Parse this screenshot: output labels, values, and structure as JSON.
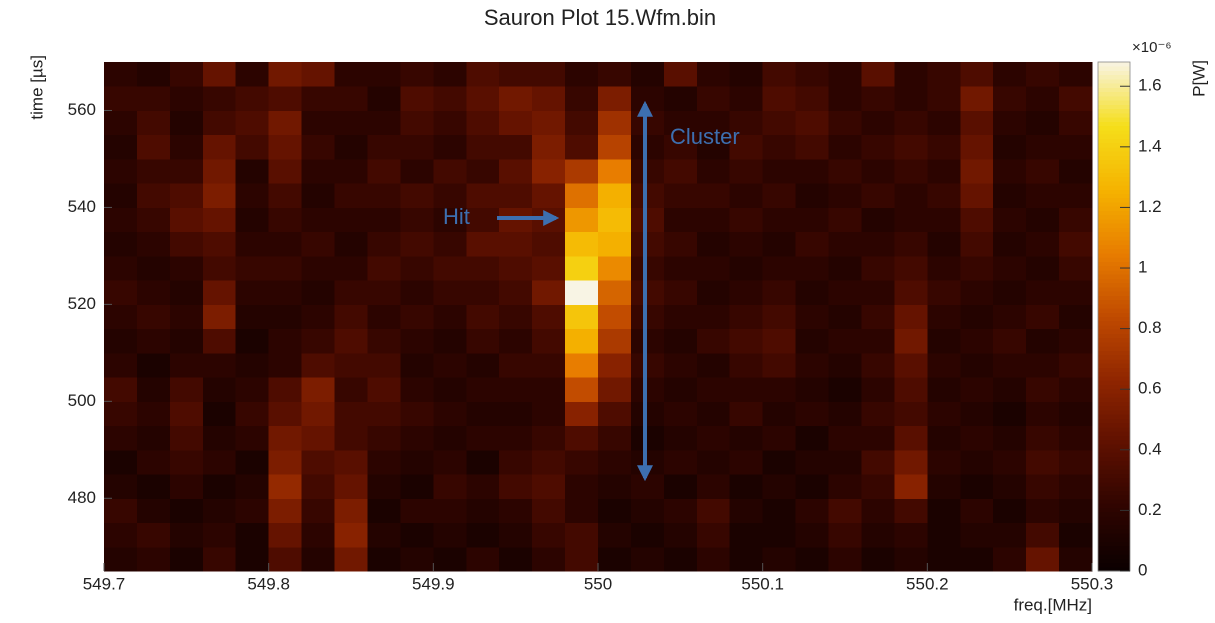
{
  "chart_data": {
    "type": "heatmap",
    "title": "Sauron Plot 15.Wfm.bin",
    "xlabel": "freq.[MHz]",
    "ylabel": "time [µs]",
    "colorbar_label": "P[W]",
    "colorbar_exponent": "×10⁻⁶",
    "x": [
      549.7,
      549.72,
      549.74,
      549.76,
      549.78,
      549.8,
      549.82,
      549.84,
      549.86,
      549.88,
      549.9,
      549.92,
      549.94,
      549.96,
      549.98,
      550,
      550.02,
      550.04,
      550.06,
      550.08,
      550.1,
      550.12,
      550.14,
      550.16,
      550.18,
      550.2,
      550.22,
      550.24,
      550.26,
      550.28,
      550.3
    ],
    "y": [
      465,
      470,
      475,
      480,
      485,
      490,
      495,
      500,
      505,
      510,
      515,
      520,
      525,
      530,
      535,
      540,
      545,
      550,
      555,
      560,
      565,
      570
    ],
    "z": [
      [
        0.15,
        0.2,
        0.1,
        0.25,
        0.1,
        0.35,
        0.15,
        0.5,
        0.1,
        0.15,
        0.1,
        0.2,
        0.1,
        0.2,
        0.3,
        0.1,
        0.15,
        0.1,
        0.2,
        0.1,
        0.15,
        0.1,
        0.2,
        0.1,
        0.15,
        0.1,
        0.1,
        0.2,
        0.45,
        0.15
      ],
      [
        0.2,
        0.25,
        0.15,
        0.2,
        0.1,
        0.45,
        0.2,
        0.6,
        0.15,
        0.1,
        0.15,
        0.1,
        0.15,
        0.25,
        0.3,
        0.15,
        0.1,
        0.15,
        0.25,
        0.1,
        0.1,
        0.15,
        0.25,
        0.15,
        0.2,
        0.1,
        0.15,
        0.15,
        0.3,
        0.1
      ],
      [
        0.25,
        0.15,
        0.1,
        0.15,
        0.2,
        0.55,
        0.25,
        0.55,
        0.1,
        0.2,
        0.2,
        0.15,
        0.2,
        0.3,
        0.2,
        0.1,
        0.15,
        0.2,
        0.3,
        0.15,
        0.1,
        0.2,
        0.3,
        0.2,
        0.3,
        0.1,
        0.2,
        0.1,
        0.2,
        0.15
      ],
      [
        0.15,
        0.1,
        0.2,
        0.1,
        0.15,
        0.65,
        0.3,
        0.45,
        0.15,
        0.1,
        0.25,
        0.2,
        0.3,
        0.35,
        0.2,
        0.15,
        0.2,
        0.1,
        0.2,
        0.1,
        0.15,
        0.1,
        0.2,
        0.25,
        0.6,
        0.15,
        0.1,
        0.15,
        0.25,
        0.2
      ],
      [
        0.1,
        0.2,
        0.25,
        0.2,
        0.1,
        0.55,
        0.35,
        0.4,
        0.2,
        0.15,
        0.2,
        0.1,
        0.25,
        0.3,
        0.25,
        0.2,
        0.15,
        0.2,
        0.15,
        0.2,
        0.1,
        0.15,
        0.15,
        0.3,
        0.5,
        0.2,
        0.15,
        0.2,
        0.3,
        0.25
      ],
      [
        0.2,
        0.15,
        0.3,
        0.15,
        0.2,
        0.5,
        0.45,
        0.3,
        0.25,
        0.2,
        0.15,
        0.2,
        0.2,
        0.25,
        0.35,
        0.25,
        0.1,
        0.15,
        0.2,
        0.15,
        0.2,
        0.1,
        0.2,
        0.2,
        0.4,
        0.15,
        0.2,
        0.15,
        0.25,
        0.2
      ],
      [
        0.25,
        0.2,
        0.35,
        0.1,
        0.25,
        0.4,
        0.5,
        0.3,
        0.3,
        0.25,
        0.2,
        0.15,
        0.15,
        0.2,
        0.6,
        0.35,
        0.15,
        0.2,
        0.15,
        0.25,
        0.15,
        0.2,
        0.15,
        0.25,
        0.3,
        0.2,
        0.15,
        0.1,
        0.2,
        0.15
      ],
      [
        0.3,
        0.15,
        0.3,
        0.15,
        0.2,
        0.35,
        0.55,
        0.25,
        0.35,
        0.2,
        0.15,
        0.2,
        0.2,
        0.2,
        0.85,
        0.5,
        0.2,
        0.15,
        0.2,
        0.2,
        0.2,
        0.15,
        0.1,
        0.2,
        0.35,
        0.15,
        0.2,
        0.15,
        0.25,
        0.2
      ],
      [
        0.2,
        0.1,
        0.2,
        0.2,
        0.15,
        0.2,
        0.35,
        0.3,
        0.3,
        0.15,
        0.2,
        0.15,
        0.25,
        0.25,
        1.05,
        0.6,
        0.25,
        0.2,
        0.15,
        0.25,
        0.3,
        0.2,
        0.15,
        0.25,
        0.4,
        0.2,
        0.15,
        0.2,
        0.2,
        0.25
      ],
      [
        0.15,
        0.2,
        0.15,
        0.35,
        0.1,
        0.2,
        0.25,
        0.35,
        0.25,
        0.2,
        0.15,
        0.25,
        0.2,
        0.3,
        1.25,
        0.75,
        0.2,
        0.15,
        0.25,
        0.3,
        0.35,
        0.15,
        0.2,
        0.2,
        0.5,
        0.15,
        0.2,
        0.25,
        0.15,
        0.2
      ],
      [
        0.2,
        0.25,
        0.2,
        0.55,
        0.15,
        0.15,
        0.2,
        0.3,
        0.2,
        0.25,
        0.2,
        0.3,
        0.25,
        0.35,
        1.35,
        0.85,
        0.25,
        0.2,
        0.2,
        0.25,
        0.3,
        0.2,
        0.15,
        0.25,
        0.45,
        0.2,
        0.15,
        0.2,
        0.25,
        0.15
      ],
      [
        0.25,
        0.2,
        0.15,
        0.45,
        0.2,
        0.2,
        0.15,
        0.25,
        0.25,
        0.2,
        0.25,
        0.25,
        0.3,
        0.5,
        1.68,
        0.95,
        0.3,
        0.25,
        0.15,
        0.2,
        0.25,
        0.15,
        0.2,
        0.2,
        0.35,
        0.25,
        0.2,
        0.15,
        0.2,
        0.2
      ],
      [
        0.2,
        0.15,
        0.2,
        0.3,
        0.25,
        0.25,
        0.2,
        0.2,
        0.3,
        0.25,
        0.3,
        0.3,
        0.35,
        0.4,
        1.4,
        1.1,
        0.25,
        0.2,
        0.2,
        0.15,
        0.2,
        0.2,
        0.15,
        0.25,
        0.3,
        0.2,
        0.25,
        0.2,
        0.15,
        0.25
      ],
      [
        0.15,
        0.2,
        0.3,
        0.35,
        0.2,
        0.2,
        0.25,
        0.15,
        0.25,
        0.3,
        0.25,
        0.4,
        0.4,
        0.35,
        1.3,
        1.25,
        0.3,
        0.25,
        0.15,
        0.2,
        0.15,
        0.25,
        0.2,
        0.2,
        0.25,
        0.15,
        0.3,
        0.15,
        0.2,
        0.3
      ],
      [
        0.2,
        0.25,
        0.4,
        0.45,
        0.15,
        0.25,
        0.2,
        0.2,
        0.2,
        0.25,
        0.2,
        0.3,
        0.45,
        0.4,
        1.15,
        1.3,
        0.35,
        0.2,
        0.2,
        0.25,
        0.2,
        0.2,
        0.25,
        0.15,
        0.2,
        0.2,
        0.35,
        0.2,
        0.15,
        0.25
      ],
      [
        0.15,
        0.3,
        0.35,
        0.55,
        0.2,
        0.3,
        0.15,
        0.25,
        0.25,
        0.3,
        0.25,
        0.35,
        0.35,
        0.45,
        1.0,
        1.25,
        0.3,
        0.25,
        0.25,
        0.2,
        0.25,
        0.15,
        0.2,
        0.25,
        0.2,
        0.25,
        0.45,
        0.15,
        0.2,
        0.2
      ],
      [
        0.2,
        0.25,
        0.25,
        0.5,
        0.15,
        0.4,
        0.2,
        0.2,
        0.3,
        0.2,
        0.3,
        0.25,
        0.4,
        0.6,
        0.75,
        1.05,
        0.25,
        0.3,
        0.2,
        0.25,
        0.2,
        0.2,
        0.25,
        0.2,
        0.25,
        0.2,
        0.5,
        0.2,
        0.25,
        0.15
      ],
      [
        0.15,
        0.35,
        0.2,
        0.45,
        0.3,
        0.45,
        0.25,
        0.15,
        0.25,
        0.25,
        0.2,
        0.3,
        0.3,
        0.55,
        0.35,
        0.8,
        0.2,
        0.25,
        0.15,
        0.3,
        0.25,
        0.3,
        0.2,
        0.25,
        0.3,
        0.25,
        0.45,
        0.15,
        0.2,
        0.2
      ],
      [
        0.2,
        0.3,
        0.15,
        0.3,
        0.35,
        0.5,
        0.2,
        0.2,
        0.2,
        0.3,
        0.25,
        0.35,
        0.45,
        0.5,
        0.3,
        0.7,
        0.25,
        0.2,
        0.2,
        0.25,
        0.3,
        0.35,
        0.25,
        0.2,
        0.25,
        0.2,
        0.4,
        0.2,
        0.15,
        0.25
      ],
      [
        0.25,
        0.25,
        0.2,
        0.25,
        0.3,
        0.35,
        0.25,
        0.25,
        0.15,
        0.35,
        0.3,
        0.4,
        0.5,
        0.45,
        0.25,
        0.55,
        0.2,
        0.15,
        0.25,
        0.2,
        0.35,
        0.3,
        0.2,
        0.25,
        0.2,
        0.25,
        0.5,
        0.25,
        0.2,
        0.3
      ],
      [
        0.2,
        0.15,
        0.25,
        0.45,
        0.2,
        0.5,
        0.45,
        0.2,
        0.2,
        0.25,
        0.2,
        0.35,
        0.3,
        0.3,
        0.2,
        0.25,
        0.15,
        0.4,
        0.2,
        0.15,
        0.3,
        0.25,
        0.2,
        0.4,
        0.2,
        0.25,
        0.35,
        0.2,
        0.25,
        0.2
      ]
    ],
    "xlim": [
      549.7,
      550.3
    ],
    "xticks": [
      549.7,
      549.8,
      549.9,
      550,
      550.1,
      550.2,
      550.3
    ],
    "ylim": [
      465,
      570
    ],
    "yticks": [
      480,
      500,
      520,
      540,
      560
    ],
    "zlim": [
      0,
      1.68
    ],
    "zticks": [
      0,
      0.2,
      0.4,
      0.6,
      0.8,
      1,
      1.2,
      1.4,
      1.6
    ],
    "colormap": [
      "#0a0000",
      "#2e0400",
      "#5e1000",
      "#8f2500",
      "#c04a00",
      "#e87d00",
      "#f5b300",
      "#f5de1a",
      "#f8f4e4"
    ],
    "annotations": [
      {
        "text": "Hit"
      },
      {
        "text": "Cluster"
      }
    ],
    "annotation_color": "#3d6fb0"
  }
}
